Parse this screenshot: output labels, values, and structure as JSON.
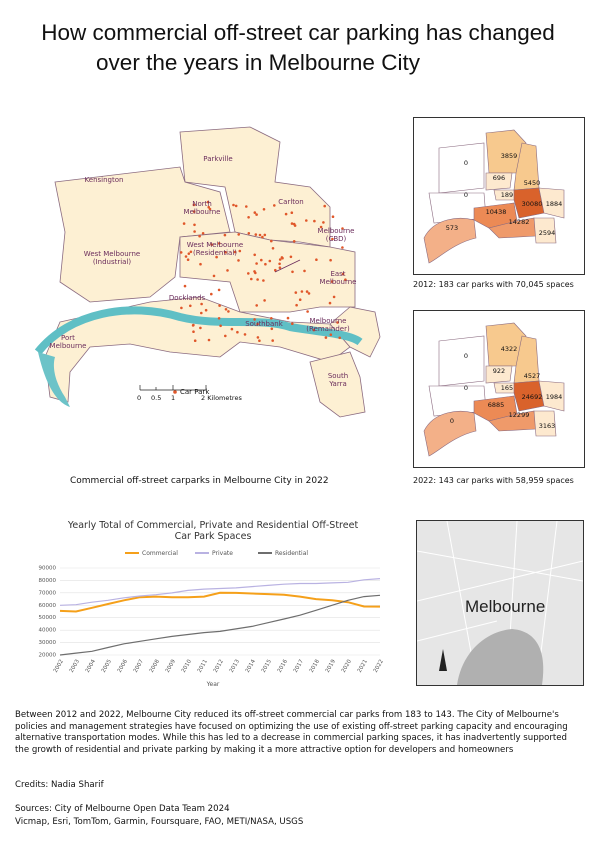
{
  "title": [
    "How commercial off-street car parking has changed",
    "over the years in Melbourne City"
  ],
  "main_map": {
    "labels": [
      "Parkville",
      "Kensington",
      "North\nMelbourne",
      "Carlton",
      "Melbourne\n(CBD)",
      "West Melbourne\n(Residential)",
      "West Melbourne\n(Industrial)",
      "East\nMelbourne",
      "Docklands",
      "Southbank",
      "Melbourne\n(Remainder)",
      "Port\nMelbourne",
      "South\nYarra"
    ],
    "legend": "Car Park",
    "scale_labels": [
      "0",
      "0.5",
      "1",
      "2 Kilometres"
    ],
    "caption": "Commercial off-street carparks in Melbourne City in 2022"
  },
  "map_2012": {
    "values": [
      0,
      3859,
      696,
      5450,
      0,
      189,
      30080,
      1884,
      10438,
      14282,
      2594,
      573
    ],
    "caption": "2012: 183 car parks with 70,045 spaces"
  },
  "map_2022": {
    "values": [
      0,
      4322,
      922,
      4527,
      0,
      165,
      24692,
      1984,
      6885,
      12299,
      3163,
      0
    ],
    "caption": "2022: 143 car parks with 58,959 spaces"
  },
  "chart_data": {
    "type": "line",
    "title": [
      "Yearly Total of Commercial, Private and Residential Off-Street",
      "Car Park Spaces"
    ],
    "x_label": "Year",
    "categories": [
      "2002",
      "2003",
      "2004",
      "2005",
      "2006",
      "2007",
      "2008",
      "2009",
      "2010",
      "2011",
      "2012",
      "2013",
      "2014",
      "2015",
      "2016",
      "2017",
      "2018",
      "2019",
      "2020",
      "2021",
      "2022"
    ],
    "series": [
      {
        "name": "Commercial",
        "color": "#f5a01a",
        "values": [
          55500,
          55000,
          58000,
          61000,
          64000,
          66500,
          67000,
          66500,
          66500,
          67000,
          70045,
          70000,
          69500,
          69000,
          68500,
          67000,
          65000,
          64000,
          62500,
          59000,
          58959
        ]
      },
      {
        "name": "Private",
        "color": "#b9b2e2",
        "values": [
          60000,
          60500,
          62500,
          64000,
          66000,
          67500,
          68500,
          70000,
          72000,
          73000,
          73500,
          74000,
          75000,
          76000,
          77000,
          77500,
          77500,
          78000,
          78500,
          80500,
          81500
        ]
      },
      {
        "name": "Residential",
        "color": "#6e6e6e",
        "values": [
          20000,
          21500,
          23000,
          26000,
          29000,
          31000,
          33000,
          35000,
          36500,
          38000,
          39000,
          41000,
          43000,
          46000,
          49000,
          52000,
          56000,
          60000,
          64000,
          67000,
          68000
        ]
      }
    ],
    "ylim": [
      20000,
      90000
    ],
    "yticks": [
      20000,
      30000,
      40000,
      50000,
      60000,
      70000,
      80000,
      90000
    ],
    "grid": true
  },
  "inset_map": {
    "label": "Melbourne"
  },
  "body": "Between 2012 and 2022, Melbourne City reduced its off-street commercial car parks from 183 to 143. The City of Melbourne's policies and management strategies have focused on optimizing the use of existing off-street parking capacity and encouraging alternative transportation modes. While this has led to a decrease in commercial parking spaces, it has inadvertently supported the growth of residential and private parking by making it a more attractive option for developers and homeowners",
  "credits": "Credits: Nadia Sharif",
  "sources": [
    "Sources: City of Melbourne Open Data Team 2024",
    "Vicmap, Esri, TomTom, Garmin, Foursquare, FAO, METI/NASA, USGS"
  ]
}
